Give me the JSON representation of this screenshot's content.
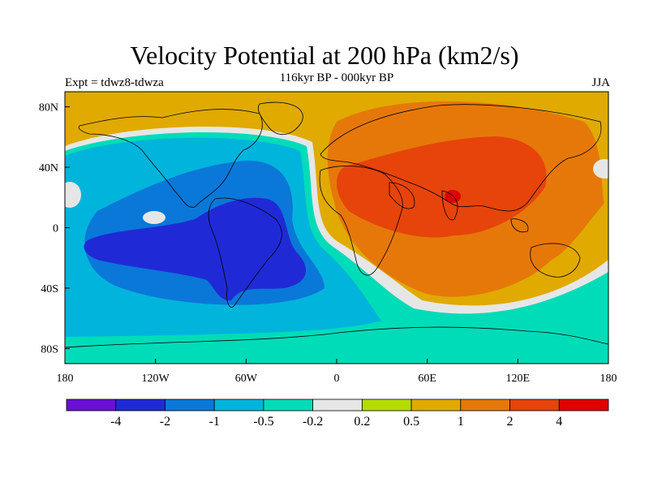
{
  "title": "Velocity Potential at 200 hPa (km2/s)",
  "subtitle": "116kyr BP - 000kyr BP",
  "left_label": "Expt = tdwz8-tdwza",
  "right_label": "JJA",
  "lat_labels": [
    "80N",
    "40N",
    "0",
    "40S",
    "80S"
  ],
  "lat_values": [
    80,
    40,
    0,
    -40,
    -80
  ],
  "lon_labels": [
    "180",
    "120W",
    "60W",
    "0",
    "60E",
    "120E",
    "180"
  ],
  "lon_values": [
    -180,
    -120,
    -60,
    0,
    60,
    120,
    180
  ],
  "colorbar": {
    "colors": [
      "#6a0fd6",
      "#1f2ad6",
      "#0a78d8",
      "#00b4dc",
      "#00dcb8",
      "#e6e6e6",
      "#b5dc00",
      "#e0aa00",
      "#e6780a",
      "#e6440a",
      "#e00000"
    ],
    "labels": [
      "-4",
      "-2",
      "-1",
      "-0.5",
      "-0.2",
      "0.2",
      "0.5",
      "1",
      "2",
      "4"
    ]
  }
}
